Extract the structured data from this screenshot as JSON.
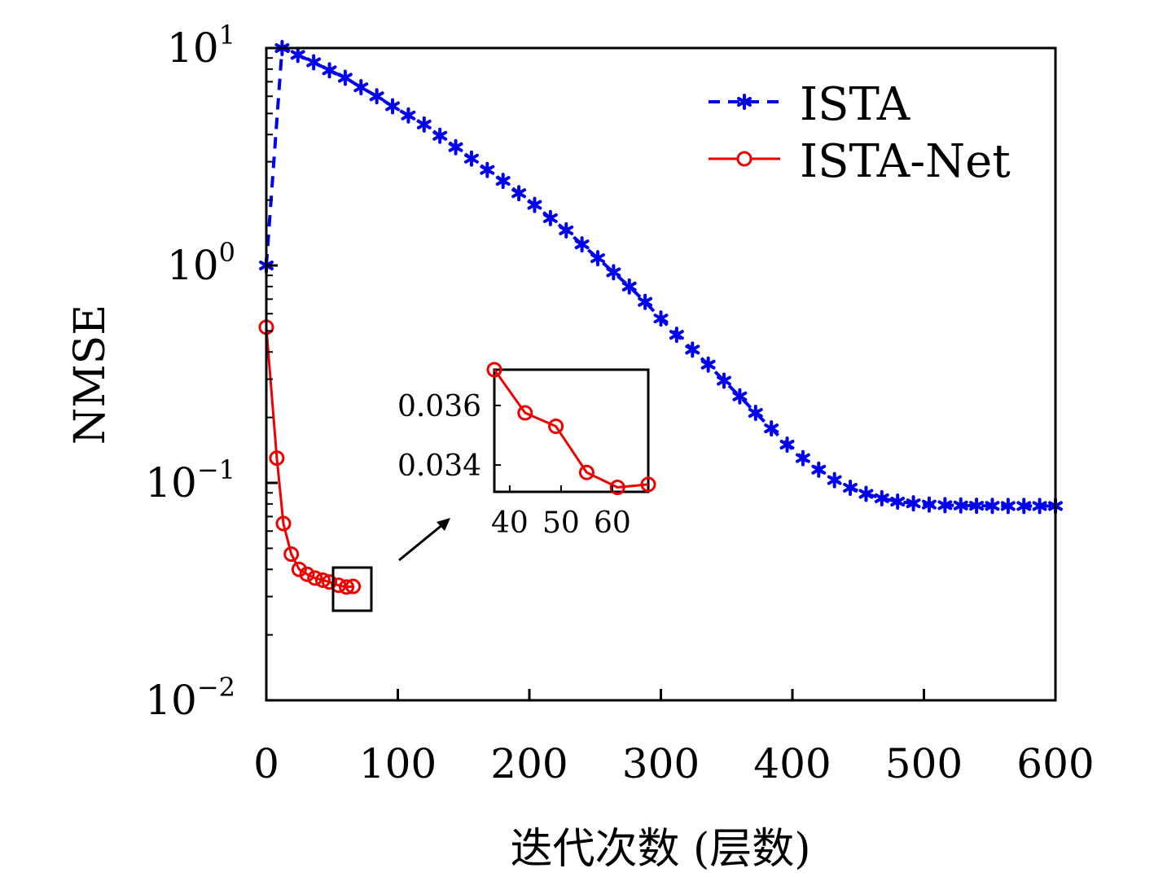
{
  "chart_data": [
    {
      "type": "line",
      "xlabel": "迭代次数 (层数)",
      "ylabel": "NMSE",
      "xlim": [
        0,
        600
      ],
      "ylim": [
        0.01,
        10
      ],
      "yscale": "log",
      "xticks": [
        "0",
        "100",
        "200",
        "300",
        "400",
        "500",
        "600"
      ],
      "yticks": [
        {
          "base": "10",
          "exp": "1"
        },
        {
          "base": "10",
          "exp": "0"
        },
        {
          "base": "10",
          "exp": "−1"
        },
        {
          "base": "10",
          "exp": "−2"
        }
      ],
      "legend_position": "top-right",
      "series": [
        {
          "name": "ISTA",
          "color": "#0000ee",
          "line": "dashed",
          "marker": "asterisk",
          "x": [
            0,
            12,
            24,
            36,
            48,
            60,
            72,
            84,
            96,
            108,
            120,
            132,
            144,
            156,
            168,
            180,
            192,
            204,
            216,
            228,
            240,
            252,
            264,
            276,
            288,
            300,
            312,
            324,
            336,
            348,
            360,
            372,
            384,
            396,
            408,
            420,
            432,
            444,
            456,
            468,
            480,
            492,
            504,
            516,
            528,
            540,
            552,
            564,
            576,
            588,
            600
          ],
          "y": [
            1.0,
            10.0,
            9.3,
            8.6,
            7.9,
            7.3,
            6.6,
            6.0,
            5.4,
            4.9,
            4.45,
            3.95,
            3.5,
            3.1,
            2.75,
            2.45,
            2.15,
            1.9,
            1.65,
            1.45,
            1.25,
            1.08,
            0.93,
            0.8,
            0.68,
            0.57,
            0.48,
            0.41,
            0.35,
            0.295,
            0.25,
            0.21,
            0.178,
            0.15,
            0.13,
            0.115,
            0.103,
            0.095,
            0.089,
            0.085,
            0.082,
            0.0805,
            0.0795,
            0.079,
            0.0787,
            0.0785,
            0.0784,
            0.0783,
            0.0783,
            0.0783,
            0.0783
          ]
        },
        {
          "name": "ISTA-Net",
          "color": "#ee0000",
          "line": "solid",
          "marker": "circle",
          "x": [
            0,
            8,
            13,
            19,
            25,
            31,
            37,
            43,
            48,
            55,
            61,
            66
          ],
          "y": [
            0.52,
            0.13,
            0.065,
            0.047,
            0.04,
            0.038,
            0.0365,
            0.0357,
            0.035,
            0.0338,
            0.0332,
            0.0334
          ]
        }
      ]
    },
    {
      "type": "line",
      "inset": true,
      "xlim": [
        37,
        67
      ],
      "ylim": [
        0.0331,
        0.0372
      ],
      "xticks": [
        "40",
        "50",
        "60"
      ],
      "yticks": [
        "0.034",
        "0.036"
      ],
      "series": [
        {
          "name": "ISTA-Net",
          "color": "#ee0000",
          "marker": "circle",
          "x": [
            37,
            43,
            49,
            55,
            61,
            67
          ],
          "y": [
            0.0372,
            0.03575,
            0.0353,
            0.03375,
            0.03325,
            0.03335
          ]
        }
      ]
    }
  ]
}
